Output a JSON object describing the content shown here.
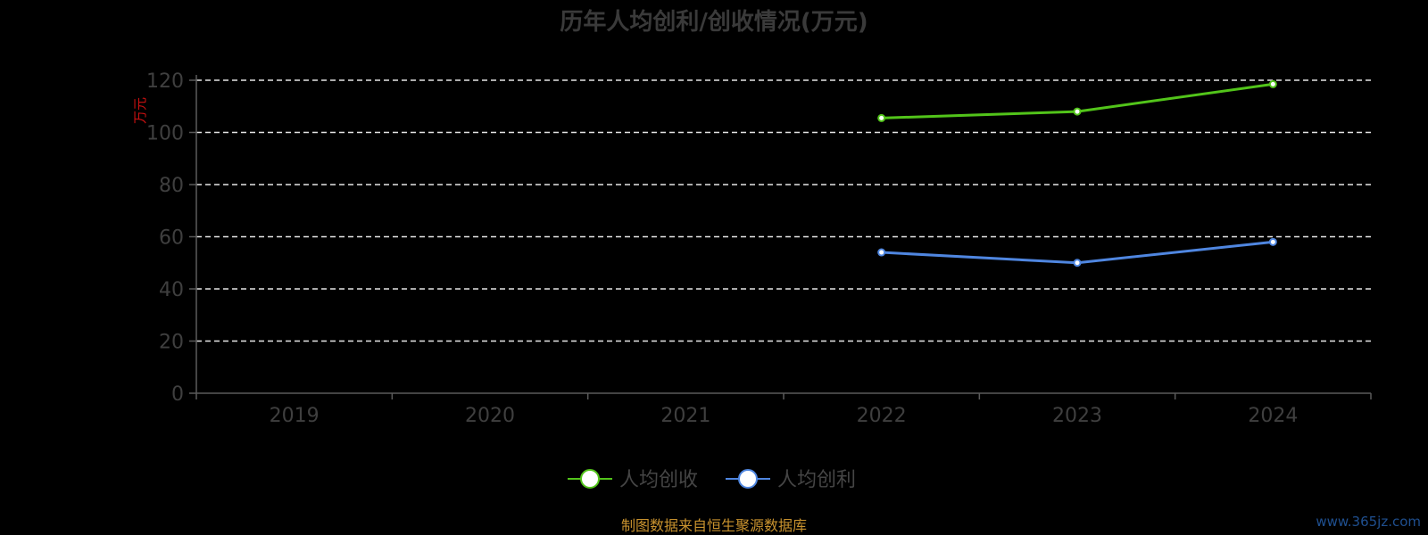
{
  "chart_data": {
    "type": "line",
    "title": "历年人均创利/创收情况(万元)",
    "ylabel": "万元",
    "ylim": [
      0,
      120
    ],
    "yticks": [
      "0",
      "20",
      "40",
      "60",
      "80",
      "100",
      "120"
    ],
    "categories": [
      "2019",
      "2020",
      "2021",
      "2022",
      "2023",
      "2024"
    ],
    "grid": true,
    "legend_position": "bottom",
    "series": [
      {
        "name": "人均创收",
        "color": "#52c41a",
        "values": [
          null,
          null,
          null,
          105.5,
          108.0,
          118.5
        ]
      },
      {
        "name": "人均创利",
        "color": "#4f86e0",
        "values": [
          null,
          null,
          null,
          54.0,
          50.0,
          58.0
        ]
      }
    ]
  },
  "footer": {
    "source": "制图数据来自恒生聚源数据库",
    "watermark": "www.365jz.com"
  }
}
